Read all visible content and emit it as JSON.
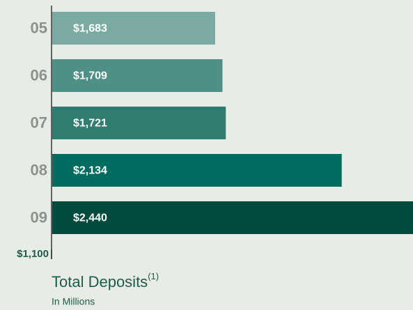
{
  "chart_data": {
    "type": "hbar",
    "title": "Total Deposits",
    "title_note": "(1)",
    "subtitle": "In Millions",
    "categories": [
      "05",
      "06",
      "07",
      "08",
      "09"
    ],
    "values": [
      1683,
      1709,
      1721,
      2134,
      2440
    ],
    "value_labels": [
      "$1,683",
      "$1,709",
      "$1,721",
      "$2,134",
      "$2,440"
    ],
    "colors": [
      "#7aaba3",
      "#4f8f86",
      "#2f7c70",
      "#006b5f",
      "#004b3d"
    ],
    "xlim": [
      1100,
      2388
    ],
    "xticks": [
      {
        "value": 1100,
        "label": "$1,100"
      }
    ]
  }
}
